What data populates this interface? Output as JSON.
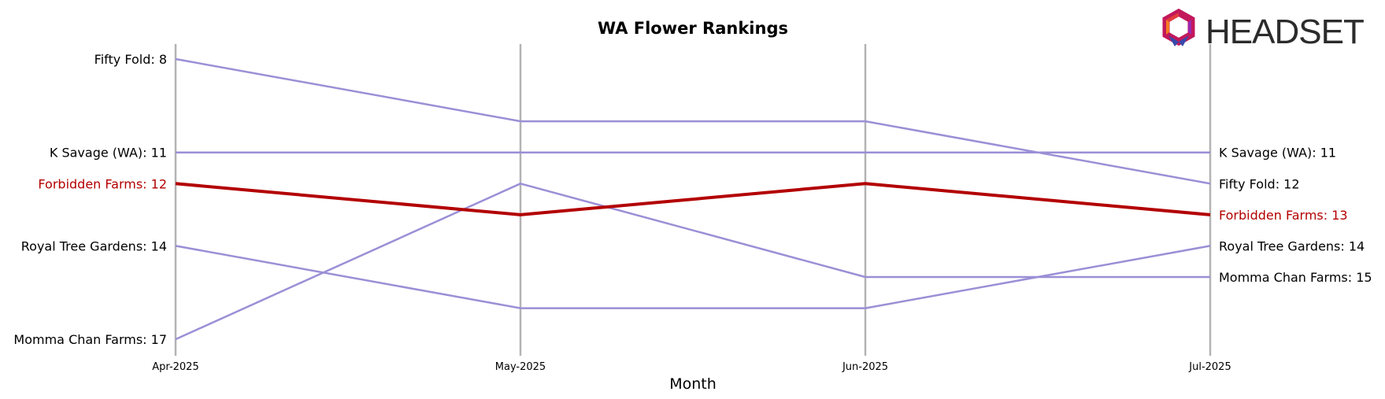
{
  "chart_data": {
    "type": "line",
    "title": "WA Flower Rankings",
    "xlabel": "Month",
    "ylabel": "",
    "x": [
      "Apr-2025",
      "May-2025",
      "Jun-2025",
      "Jul-2025"
    ],
    "y_inverted": true,
    "ylim": [
      7.5,
      17.5
    ],
    "grid": "vertical-only",
    "highlight_series": "Forbidden Farms",
    "colors": {
      "default": "#9b8fd6",
      "highlight": "#b30000",
      "gridline": "#b3b3b3"
    },
    "series": [
      {
        "name": "Fifty Fold",
        "values": [
          8,
          10,
          10,
          12
        ],
        "start_label": "Fifty Fold: 8",
        "end_label": "Fifty Fold: 12"
      },
      {
        "name": "K Savage (WA)",
        "values": [
          11,
          11,
          11,
          11
        ],
        "start_label": "K Savage (WA): 11",
        "end_label": "K Savage (WA): 11"
      },
      {
        "name": "Forbidden Farms",
        "values": [
          12,
          13,
          12,
          13
        ],
        "start_label": "Forbidden Farms: 12",
        "end_label": "Forbidden Farms: 13"
      },
      {
        "name": "Royal Tree Gardens",
        "values": [
          14,
          16,
          16,
          14
        ],
        "start_label": "Royal Tree Gardens: 14",
        "end_label": "Royal Tree Gardens: 14"
      },
      {
        "name": "Momma Chan Farms",
        "values": [
          17,
          12,
          15,
          15
        ],
        "start_label": "Momma Chan Farms: 17",
        "end_label": "Momma Chan Farms: 15"
      }
    ]
  },
  "logo": {
    "text": "HEADSET",
    "icon": "headset-hexagon-logo-icon"
  }
}
